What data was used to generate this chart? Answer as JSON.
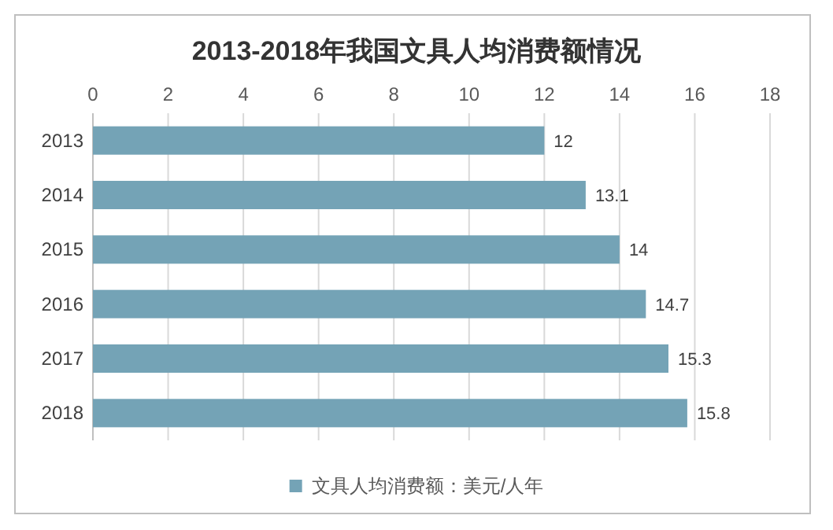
{
  "chart_data": {
    "type": "bar",
    "orientation": "horizontal",
    "title": "2013-2018年我国文具人均消费额情况",
    "categories": [
      "2013",
      "2014",
      "2015",
      "2016",
      "2017",
      "2018"
    ],
    "series": [
      {
        "name": "文具人均消费额：美元/人年",
        "color": "#74a3b6",
        "values": [
          12,
          13.1,
          14,
          14.7,
          15.3,
          15.8
        ]
      }
    ],
    "xlim": [
      0,
      18
    ],
    "xticks": [
      0,
      2,
      4,
      6,
      8,
      10,
      12,
      14,
      16,
      18
    ],
    "grid": "x",
    "data_labels": true,
    "legend": "bottom"
  }
}
